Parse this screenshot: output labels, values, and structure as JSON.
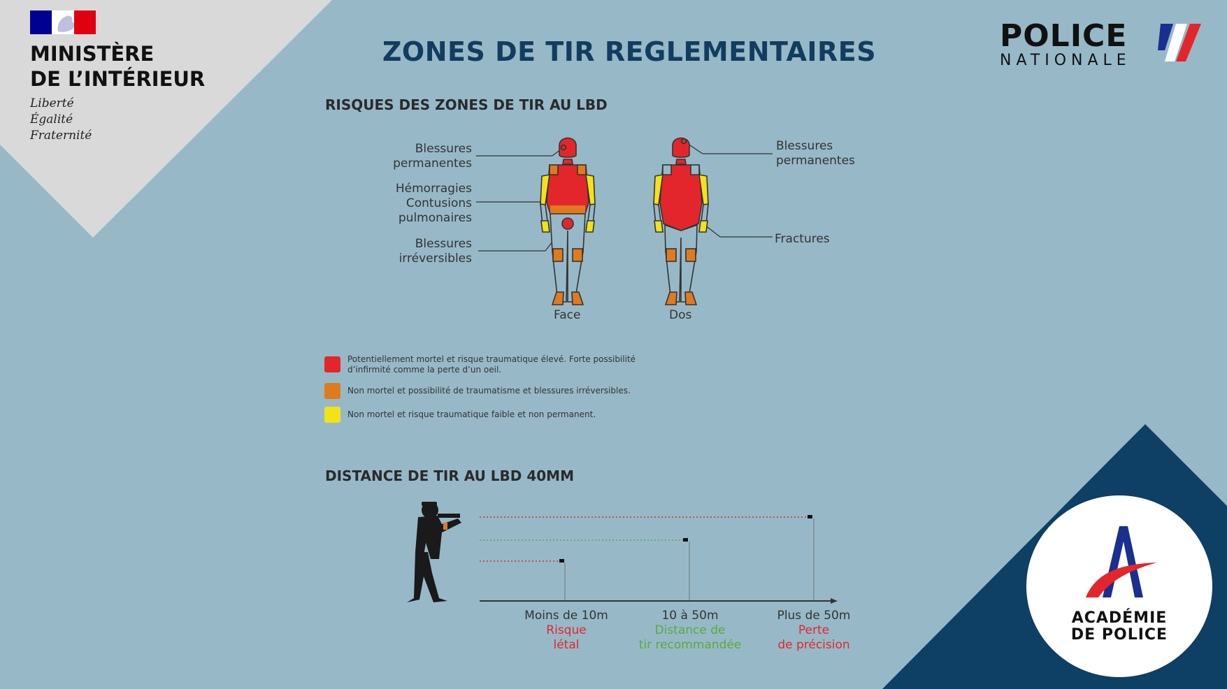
{
  "ministere": {
    "line1": "MINISTÈRE",
    "line2": "DE L’INTÉRIEUR",
    "motto1": "Liberté",
    "motto2": "Égalité",
    "motto3": "Fraternité"
  },
  "police": {
    "line1": "POLICE",
    "line2": "NATIONALE"
  },
  "title": "ZONES DE TIR REGLEMENTAIRES",
  "section1": "RISQUES DES ZONES DE TIR AU LBD",
  "section2": "DISTANCE DE TIR AU LBD 40MM",
  "left_labels": [
    {
      "l1": "Blessures",
      "l2": "permanentes"
    },
    {
      "l1": "Hémorragies",
      "l2": "Contusions",
      "l3": "pulmonaires"
    },
    {
      "l1": "Blessures",
      "l2": "irréversibles"
    }
  ],
  "right_labels": [
    {
      "l1": "Blessures",
      "l2": "permanentes"
    },
    {
      "l1": "Fractures"
    }
  ],
  "figure_captions": {
    "front": "Face",
    "back": "Dos"
  },
  "colors": {
    "red": "#e3262b",
    "orange": "#e07a1f",
    "yellow": "#f2e21a",
    "navy": "#0e3f64",
    "green": "#5aaa3c",
    "bg": "#97b9c7"
  },
  "legend": [
    {
      "color": "#e3262b",
      "l1": "Potentiellement mortel et risque traumatique élevé. Forte possibilité",
      "l2": "d’infirmité comme la perte d’un oeil."
    },
    {
      "color": "#e07a1f",
      "l1": "Non mortel et possibilité de traumatisme et blessures irréversibles."
    },
    {
      "color": "#f2e21a",
      "l1": "Non mortel et risque traumatique faible et non permanent."
    }
  ],
  "distances": [
    {
      "label": "Moins de 10m",
      "sub1": "Risque",
      "sub2": "létal",
      "color": "#e3262b"
    },
    {
      "label": "10 à 50m",
      "sub1": "Distance de",
      "sub2": "tir recommandée",
      "color": "#5aaa3c"
    },
    {
      "label": "Plus de 50m",
      "sub1": "Perte",
      "sub2": "de précision",
      "color": "#e3262b"
    }
  ],
  "academie": {
    "line1": "ACADÉMIE",
    "line2": "DE POLICE"
  }
}
